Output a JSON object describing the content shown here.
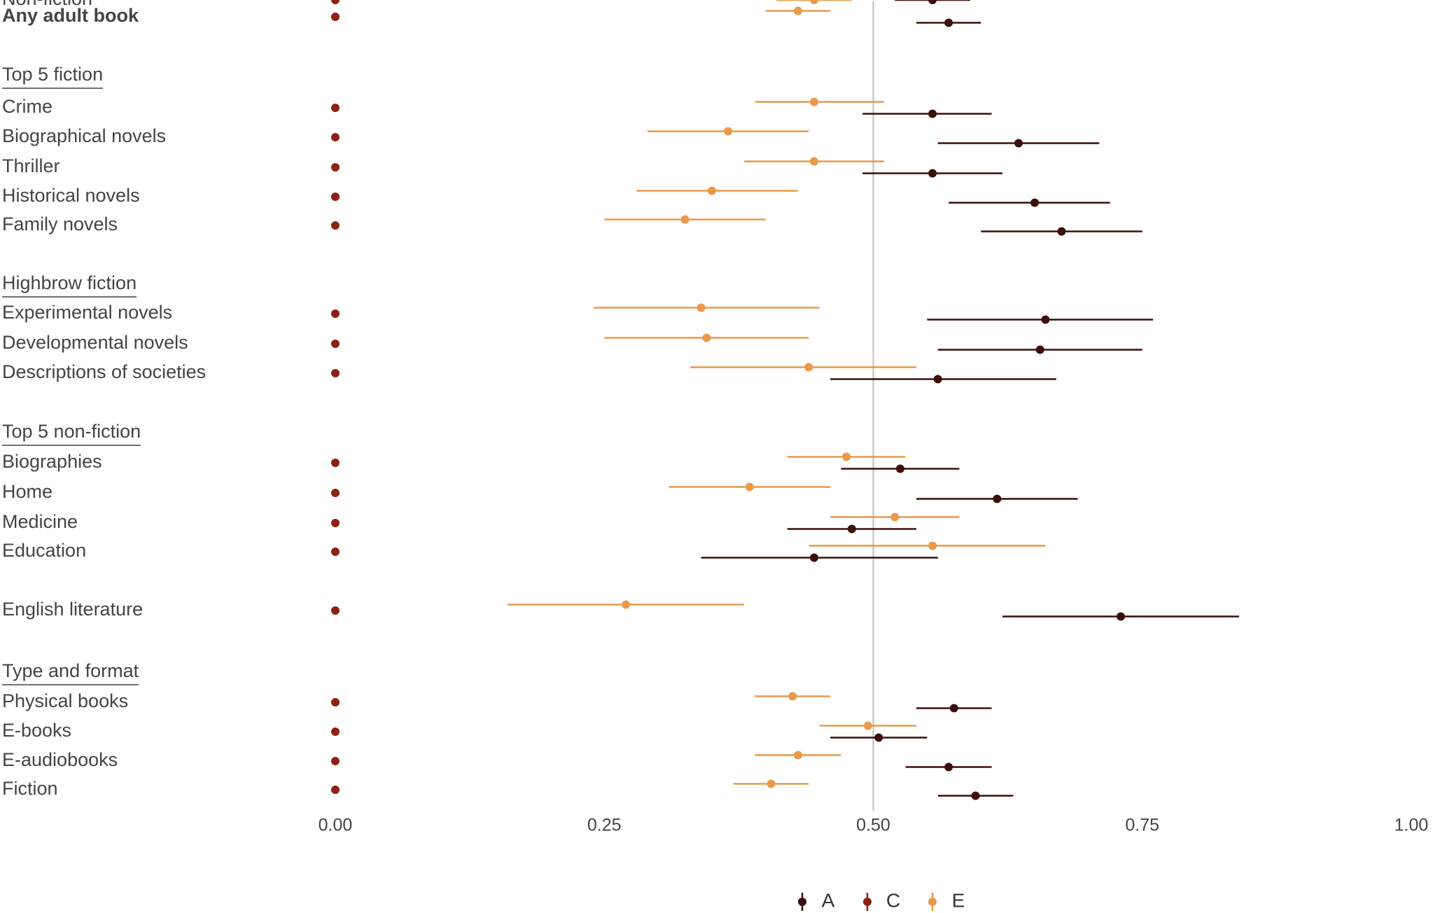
{
  "chart_data": {
    "type": "scatter",
    "subtype": "forest-plot-with-error-bars",
    "xlim": [
      0,
      1
    ],
    "x_ticks": [
      "0.00",
      "0.25",
      "0.50",
      "0.75",
      "1.00"
    ],
    "reference_line_x": 0.5,
    "legend": {
      "placement": "bottom",
      "entries": [
        {
          "key": "A",
          "label": "A",
          "color": "#3b0f0a"
        },
        {
          "key": "C",
          "label": "C",
          "color": "#8b2214"
        },
        {
          "key": "E",
          "label": "E",
          "color": "#e89a4a"
        }
      ]
    },
    "rows": [
      {
        "label": "Any adult book",
        "kind": "item",
        "bold": true,
        "C": 0.0,
        "E": [
          0.43,
          0.4,
          0.46
        ],
        "A": [
          0.57,
          0.54,
          0.6
        ]
      },
      {
        "label": "Top 5 fiction",
        "kind": "heading"
      },
      {
        "label": "Crime",
        "kind": "item",
        "C": 0.0,
        "E": [
          0.445,
          0.39,
          0.51
        ],
        "A": [
          0.555,
          0.49,
          0.61
        ]
      },
      {
        "label": "Biographical novels",
        "kind": "item",
        "C": 0.0,
        "E": [
          0.365,
          0.29,
          0.44
        ],
        "A": [
          0.635,
          0.56,
          0.71
        ]
      },
      {
        "label": "Thriller",
        "kind": "item",
        "C": 0.0,
        "E": [
          0.445,
          0.38,
          0.51
        ],
        "A": [
          0.555,
          0.49,
          0.62
        ]
      },
      {
        "label": "Historical novels",
        "kind": "item",
        "C": 0.0,
        "E": [
          0.35,
          0.28,
          0.43
        ],
        "A": [
          0.65,
          0.57,
          0.72
        ]
      },
      {
        "label": "Family novels",
        "kind": "item",
        "C": 0.0,
        "E": [
          0.325,
          0.25,
          0.4
        ],
        "A": [
          0.675,
          0.6,
          0.75
        ]
      },
      {
        "label": "Highbrow fiction",
        "kind": "heading"
      },
      {
        "label": "Experimental novels",
        "kind": "item",
        "C": 0.0,
        "E": [
          0.34,
          0.24,
          0.45
        ],
        "A": [
          0.66,
          0.55,
          0.76
        ]
      },
      {
        "label": "Developmental novels",
        "kind": "item",
        "C": 0.0,
        "E": [
          0.345,
          0.25,
          0.44
        ],
        "A": [
          0.655,
          0.56,
          0.75
        ]
      },
      {
        "label": "Descriptions of societies",
        "kind": "item",
        "C": 0.0,
        "E": [
          0.44,
          0.33,
          0.54
        ],
        "A": [
          0.56,
          0.46,
          0.67
        ]
      },
      {
        "label": "Top 5 non-fiction",
        "kind": "heading"
      },
      {
        "label": "Biographies",
        "kind": "item",
        "C": 0.0,
        "E": [
          0.475,
          0.42,
          0.53
        ],
        "A": [
          0.525,
          0.47,
          0.58
        ]
      },
      {
        "label": "Home",
        "kind": "item",
        "C": 0.0,
        "E": [
          0.385,
          0.31,
          0.46
        ],
        "A": [
          0.615,
          0.54,
          0.69
        ]
      },
      {
        "label": "Medicine",
        "kind": "item",
        "C": 0.0,
        "E": [
          0.52,
          0.46,
          0.58
        ],
        "A": [
          0.48,
          0.42,
          0.54
        ]
      },
      {
        "label": "Education",
        "kind": "item",
        "C": 0.0,
        "E": [
          0.555,
          0.44,
          0.66
        ],
        "A": [
          0.445,
          0.34,
          0.56
        ]
      },
      {
        "label": "English literature",
        "kind": "item",
        "C": 0.0,
        "E": [
          0.27,
          0.16,
          0.38
        ],
        "A": [
          0.73,
          0.62,
          0.84
        ]
      },
      {
        "label": "Type and format",
        "kind": "heading"
      },
      {
        "label": "Physical books",
        "kind": "item",
        "C": 0.0,
        "E": [
          0.425,
          0.39,
          0.46
        ],
        "A": [
          0.575,
          0.54,
          0.61
        ]
      },
      {
        "label": "E-books",
        "kind": "item",
        "C": 0.0,
        "E": [
          0.495,
          0.45,
          0.54
        ],
        "A": [
          0.505,
          0.46,
          0.55
        ]
      },
      {
        "label": "E-audiobooks",
        "kind": "item",
        "C": 0.0,
        "E": [
          0.43,
          0.39,
          0.47
        ],
        "A": [
          0.57,
          0.53,
          0.61
        ]
      },
      {
        "label": "Fiction",
        "kind": "item",
        "C": 0.0,
        "E": [
          0.405,
          0.37,
          0.44
        ],
        "A": [
          0.595,
          0.56,
          0.63
        ]
      },
      {
        "label": "Non-fiction",
        "kind": "item",
        "C": 0.0,
        "E": [
          0.445,
          0.41,
          0.48
        ],
        "A": [
          0.555,
          0.52,
          0.59
        ]
      }
    ]
  }
}
